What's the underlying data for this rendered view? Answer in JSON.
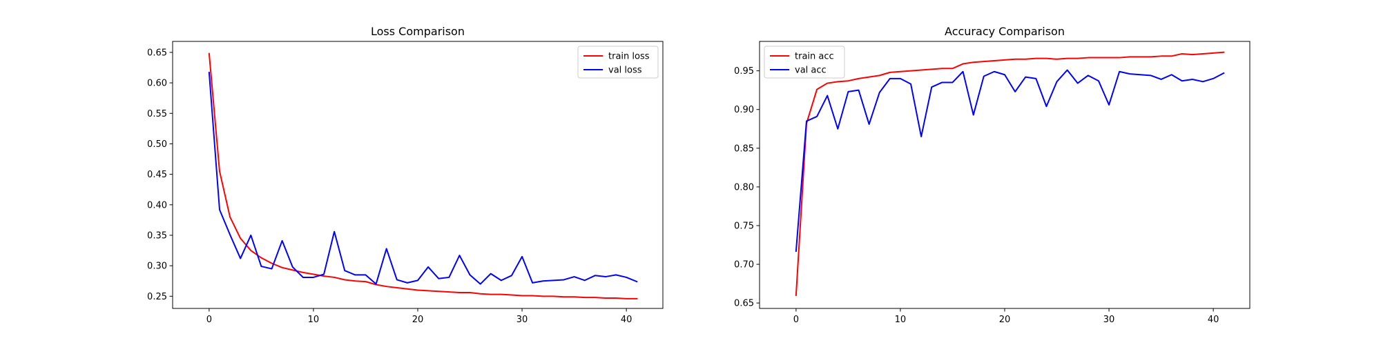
{
  "chart_data": [
    {
      "type": "line",
      "title": "Loss Comparison",
      "xlabel": "",
      "ylabel": "",
      "xlim": [
        -3.5,
        43.5
      ],
      "ylim": [
        0.23,
        0.668
      ],
      "xticks": [
        0,
        10,
        20,
        30,
        40
      ],
      "yticks": [
        0.25,
        0.3,
        0.35,
        0.4,
        0.45,
        0.5,
        0.55,
        0.6,
        0.65
      ],
      "ytick_labels": [
        "0.25",
        "0.30",
        "0.35",
        "0.40",
        "0.45",
        "0.50",
        "0.55",
        "0.60",
        "0.65"
      ],
      "grid": false,
      "legend_position": "top-right",
      "x": [
        0,
        1,
        2,
        3,
        4,
        5,
        6,
        7,
        8,
        9,
        10,
        11,
        12,
        13,
        14,
        15,
        16,
        17,
        18,
        19,
        20,
        21,
        22,
        23,
        24,
        25,
        26,
        27,
        28,
        29,
        30,
        31,
        32,
        33,
        34,
        35,
        36,
        37,
        38,
        39,
        40,
        41
      ],
      "series": [
        {
          "name": "train loss",
          "color": "#ff0000",
          "values": [
            0.648,
            0.455,
            0.38,
            0.345,
            0.325,
            0.313,
            0.304,
            0.297,
            0.293,
            0.289,
            0.286,
            0.283,
            0.281,
            0.277,
            0.275,
            0.274,
            0.269,
            0.266,
            0.264,
            0.262,
            0.26,
            0.259,
            0.258,
            0.257,
            0.256,
            0.256,
            0.254,
            0.253,
            0.253,
            0.252,
            0.251,
            0.251,
            0.25,
            0.25,
            0.249,
            0.249,
            0.248,
            0.248,
            0.247,
            0.247,
            0.246,
            0.246
          ]
        },
        {
          "name": "val loss",
          "color": "#0000ff",
          "values": [
            0.617,
            0.392,
            0.351,
            0.312,
            0.35,
            0.299,
            0.295,
            0.341,
            0.298,
            0.281,
            0.281,
            0.286,
            0.356,
            0.292,
            0.285,
            0.285,
            0.27,
            0.328,
            0.277,
            0.272,
            0.276,
            0.298,
            0.279,
            0.281,
            0.317,
            0.285,
            0.27,
            0.287,
            0.276,
            0.284,
            0.315,
            0.272,
            0.275,
            0.276,
            0.277,
            0.282,
            0.276,
            0.284,
            0.282,
            0.285,
            0.281,
            0.274
          ]
        }
      ]
    },
    {
      "type": "line",
      "title": "Accuracy Comparison",
      "xlabel": "",
      "ylabel": "",
      "xlim": [
        -3.5,
        43.5
      ],
      "ylim": [
        0.643,
        0.988
      ],
      "xticks": [
        0,
        10,
        20,
        30,
        40
      ],
      "yticks": [
        0.65,
        0.7,
        0.75,
        0.8,
        0.85,
        0.9,
        0.95
      ],
      "ytick_labels": [
        "0.65",
        "0.70",
        "0.75",
        "0.80",
        "0.85",
        "0.90",
        "0.95"
      ],
      "grid": false,
      "legend_position": "top-left",
      "x": [
        0,
        1,
        2,
        3,
        4,
        5,
        6,
        7,
        8,
        9,
        10,
        11,
        12,
        13,
        14,
        15,
        16,
        17,
        18,
        19,
        20,
        21,
        22,
        23,
        24,
        25,
        26,
        27,
        28,
        29,
        30,
        31,
        32,
        33,
        34,
        35,
        36,
        37,
        38,
        39,
        40,
        41
      ],
      "series": [
        {
          "name": "train acc",
          "color": "#ff0000",
          "values": [
            0.66,
            0.882,
            0.926,
            0.934,
            0.936,
            0.937,
            0.94,
            0.942,
            0.944,
            0.948,
            0.949,
            0.95,
            0.951,
            0.952,
            0.953,
            0.953,
            0.959,
            0.961,
            0.962,
            0.963,
            0.964,
            0.965,
            0.965,
            0.966,
            0.966,
            0.965,
            0.966,
            0.966,
            0.967,
            0.967,
            0.967,
            0.967,
            0.968,
            0.968,
            0.968,
            0.969,
            0.969,
            0.972,
            0.971,
            0.972,
            0.973,
            0.974
          ]
        },
        {
          "name": "val acc",
          "color": "#0000ff",
          "values": [
            0.717,
            0.885,
            0.891,
            0.918,
            0.875,
            0.923,
            0.925,
            0.881,
            0.922,
            0.94,
            0.94,
            0.933,
            0.865,
            0.929,
            0.935,
            0.935,
            0.949,
            0.893,
            0.943,
            0.949,
            0.945,
            0.923,
            0.942,
            0.94,
            0.904,
            0.936,
            0.951,
            0.934,
            0.944,
            0.937,
            0.906,
            0.949,
            0.946,
            0.945,
            0.944,
            0.939,
            0.945,
            0.937,
            0.939,
            0.936,
            0.94,
            0.947
          ]
        }
      ]
    }
  ]
}
